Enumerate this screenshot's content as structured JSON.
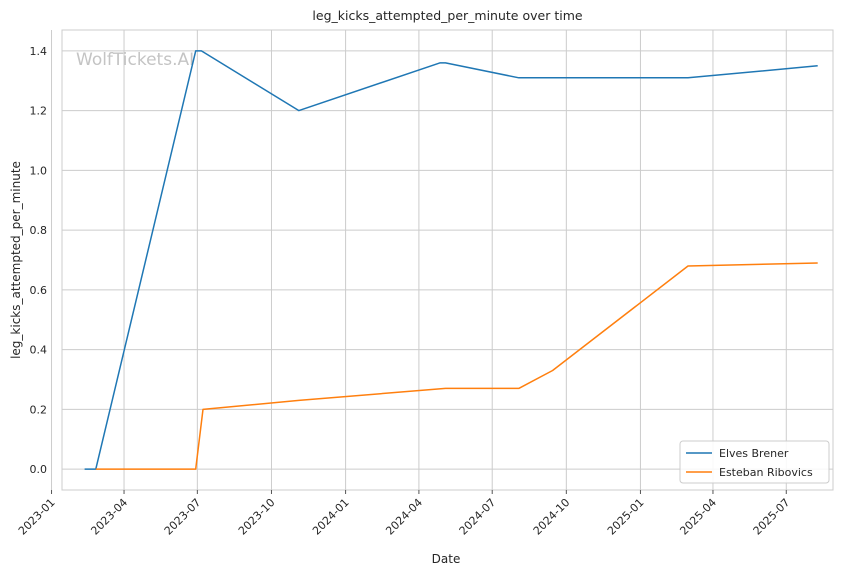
{
  "chart_data": {
    "type": "line",
    "title": "leg_kicks_attempted_per_minute over time",
    "xlabel": "Date",
    "ylabel": "leg_kicks_attempted_per_minute",
    "xlim": [
      "2023-01-14",
      "2025-08-28"
    ],
    "ylim": [
      -0.07,
      1.47
    ],
    "x_ticks": [
      "2023-01",
      "2023-04",
      "2023-07",
      "2023-10",
      "2024-01",
      "2024-04",
      "2024-07",
      "2024-10",
      "2025-01",
      "2025-04",
      "2025-07"
    ],
    "y_ticks": [
      "0.0",
      "0.2",
      "0.4",
      "0.6",
      "0.8",
      "1.0",
      "1.2",
      "1.4"
    ],
    "grid": true,
    "legend_position": "bottom-right",
    "watermark": "WolfTickets.AI",
    "series": [
      {
        "name": "Elves Brener",
        "color": "#1f77b4",
        "points": [
          {
            "x": "2023-02-11",
            "y": 0.0
          },
          {
            "x": "2023-02-25",
            "y": 0.0
          },
          {
            "x": "2023-06-29",
            "y": 1.4
          },
          {
            "x": "2023-07-06",
            "y": 1.4
          },
          {
            "x": "2023-11-04",
            "y": 1.2
          },
          {
            "x": "2024-04-27",
            "y": 1.36
          },
          {
            "x": "2024-05-04",
            "y": 1.36
          },
          {
            "x": "2024-08-03",
            "y": 1.31
          },
          {
            "x": "2025-03-01",
            "y": 1.31
          },
          {
            "x": "2025-08-09",
            "y": 1.35
          }
        ]
      },
      {
        "name": "Esteban Ribovics",
        "color": "#ff7f0e",
        "points": [
          {
            "x": "2023-02-25",
            "y": 0.0
          },
          {
            "x": "2023-06-29",
            "y": 0.0
          },
          {
            "x": "2023-07-08",
            "y": 0.2
          },
          {
            "x": "2023-11-04",
            "y": 0.23
          },
          {
            "x": "2024-05-04",
            "y": 0.27
          },
          {
            "x": "2024-08-03",
            "y": 0.27
          },
          {
            "x": "2024-09-14",
            "y": 0.33
          },
          {
            "x": "2025-03-01",
            "y": 0.68
          },
          {
            "x": "2025-08-09",
            "y": 0.69
          }
        ]
      }
    ]
  }
}
